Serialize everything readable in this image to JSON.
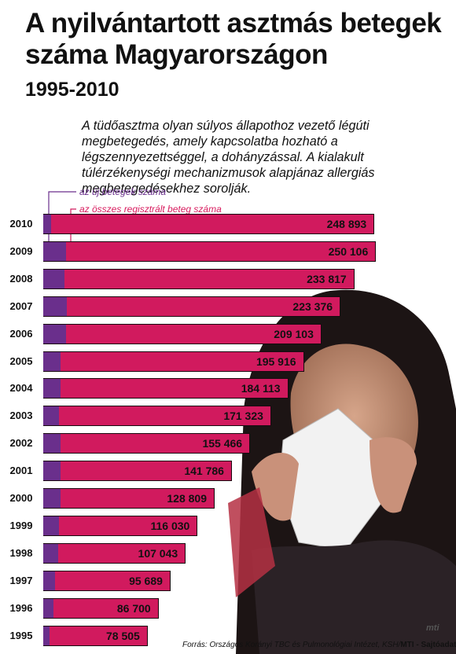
{
  "header": {
    "title": "A nyilvántartott asztmás betegek száma Magyarországon",
    "years": "1995-2010",
    "intro": "A tüdőasztma olyan súlyos állapothoz vezető légúti megbetegedés, amely kapcsolatba hozható a légszennyezettséggel, a dohányzással. A kialakult túlérzékenységi mechanizmusok alapjánaz allergiás megbetegedésekhez sorolják."
  },
  "legend": {
    "new_patients": "az új betegek száma",
    "total_patients": "az összes regisztrált beteg száma"
  },
  "footer": {
    "source": "Forrás: Országos Korányi TBC és Pulmonológiai Intézet, KSH/",
    "agency": "MTI - Sajtóadatbank",
    "logo": "mti"
  },
  "colors": {
    "total_bar": "#d11a5e",
    "new_bar": "#6a2f8c"
  },
  "chart_data": {
    "type": "bar",
    "orientation": "horizontal",
    "categories": [
      "2010",
      "2009",
      "2008",
      "2007",
      "2006",
      "2005",
      "2004",
      "2003",
      "2002",
      "2001",
      "2000",
      "1999",
      "1998",
      "1997",
      "1996",
      "1995"
    ],
    "series": [
      {
        "name": "az összes regisztrált beteg száma",
        "values": [
          248893,
          250106,
          233817,
          223376,
          209103,
          195916,
          184113,
          171323,
          155466,
          141786,
          128809,
          116030,
          107043,
          95689,
          86700,
          78505
        ],
        "labels": [
          "248 893",
          "250 106",
          "233 817",
          "223 376",
          "209 103",
          "195 916",
          "184 113",
          "171 323",
          "155 466",
          "141 786",
          "128 809",
          "116 030",
          "107 043",
          "95 689",
          "86 700",
          "78 505"
        ]
      },
      {
        "name": "az új betegek száma",
        "values": [
          6000,
          17000,
          16000,
          18000,
          17000,
          13000,
          13000,
          12000,
          13000,
          13000,
          13000,
          12000,
          11000,
          9000,
          7500,
          5000
        ]
      }
    ],
    "xlim": [
      0,
      260000
    ]
  }
}
